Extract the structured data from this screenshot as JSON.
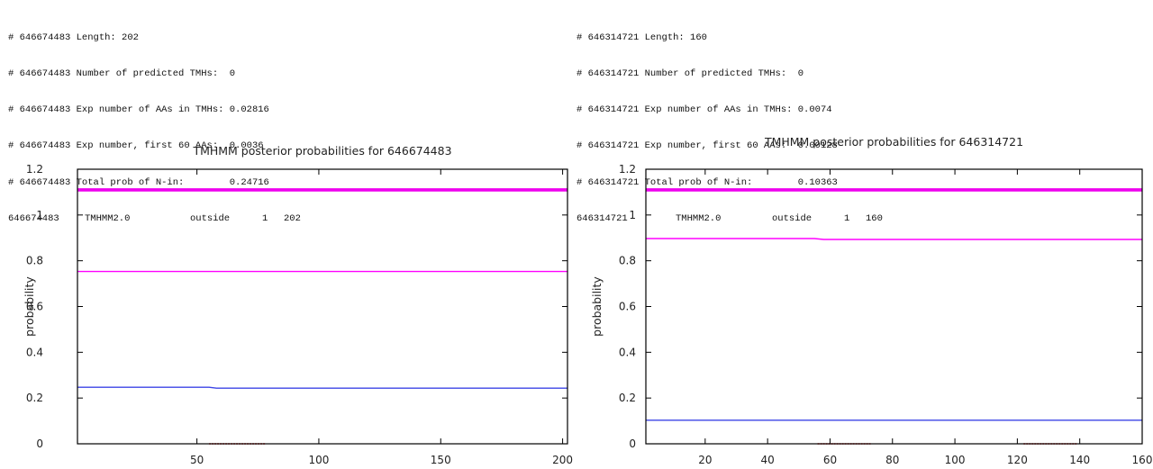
{
  "left": {
    "header_lines": [
      "# 646674483 Length: 202",
      "# 646674483 Number of predicted TMHs:  0",
      "# 646674483 Exp number of AAs in TMHs: 0.02816",
      "# 646674483 Exp number, first 60 AAs:  0.0036",
      "# 646674483 Total prob of N-in:        0.24716"
    ],
    "prediction_row": {
      "seq_id": "646674483",
      "method": "TMHMM2.0",
      "location": "outside",
      "start": "1",
      "end": "202"
    }
  },
  "right": {
    "header_lines": [
      "# 646314721 Length: 160",
      "# 646314721 Number of predicted TMHs:  0",
      "# 646314721 Exp number of AAs in TMHs: 0.0074",
      "# 646314721 Exp number, first 60 AAs:  0.00128",
      "# 646314721 Total prob of N-in:        0.10363"
    ],
    "prediction_row": {
      "seq_id": "646314721",
      "method": "TMHMM2.0",
      "location": "outside",
      "start": "1",
      "end": "160"
    }
  },
  "colors": {
    "outside": "#ff00ff",
    "inside": "#3c44e6",
    "transmembrane": "#cc1111",
    "thick_bar": "#ee00ee"
  },
  "chart_data": [
    {
      "type": "line",
      "title": "TMHMM posterior probabilities for 646674483",
      "xlabel": "",
      "ylabel": "probability",
      "xlim": [
        1,
        202
      ],
      "ylim": [
        0,
        1.2
      ],
      "x_ticks": [
        50,
        100,
        150,
        200
      ],
      "y_ticks": [
        0,
        0.2,
        0.4,
        0.6,
        0.8,
        1,
        1.2
      ],
      "y_tick_labels": [
        "0",
        "0.2",
        "0.4",
        "0.6",
        "0.8",
        "1",
        "1.2"
      ],
      "grid": false,
      "series": [
        {
          "role": "thick_bar",
          "points": [
            [
              1,
              1.11
            ],
            [
              202,
              1.11
            ]
          ]
        },
        {
          "role": "outside",
          "points": [
            [
              1,
              0.753
            ],
            [
              202,
              0.753
            ]
          ]
        },
        {
          "role": "inside",
          "points": [
            [
              1,
              0.247
            ],
            [
              55,
              0.247
            ],
            [
              58,
              0.243
            ],
            [
              202,
              0.243
            ]
          ]
        },
        {
          "role": "transmembrane",
          "points": [
            [
              55,
              0.0
            ],
            [
              78,
              0.0
            ]
          ]
        }
      ]
    },
    {
      "type": "line",
      "title": "TMHMM posterior probabilities for 646314721",
      "xlabel": "",
      "ylabel": "probability",
      "xlim": [
        1,
        160
      ],
      "ylim": [
        0,
        1.2
      ],
      "x_ticks": [
        20,
        40,
        60,
        80,
        100,
        120,
        140,
        160
      ],
      "y_ticks": [
        0,
        0.2,
        0.4,
        0.6,
        0.8,
        1,
        1.2
      ],
      "y_tick_labels": [
        "0",
        "0.2",
        "0.4",
        "0.6",
        "0.8",
        "1",
        "1.2"
      ],
      "grid": false,
      "series": [
        {
          "role": "thick_bar",
          "points": [
            [
              1,
              1.11
            ],
            [
              160,
              1.11
            ]
          ]
        },
        {
          "role": "outside",
          "points": [
            [
              1,
              0.897
            ],
            [
              55,
              0.897
            ],
            [
              58,
              0.893
            ],
            [
              160,
              0.893
            ]
          ]
        },
        {
          "role": "inside",
          "points": [
            [
              1,
              0.103
            ],
            [
              160,
              0.103
            ]
          ]
        },
        {
          "role": "transmembrane",
          "points": [
            [
              56,
              0.0
            ],
            [
              73,
              0.0
            ]
          ]
        },
        {
          "role": "transmembrane",
          "points": [
            [
              122,
              0.0
            ],
            [
              139,
              0.0
            ]
          ]
        }
      ]
    }
  ]
}
